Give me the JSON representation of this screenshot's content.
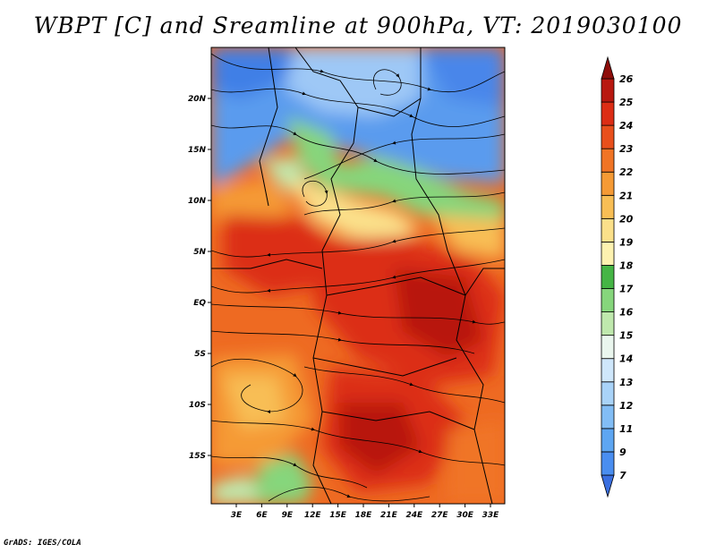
{
  "title": "WBPT [C] and Sreamline at 900hPa, VT: 2019030100",
  "credit": "GrADS: IGES/COLA",
  "map": {
    "lat_ticks": [
      "20N",
      "15N",
      "10N",
      "5N",
      "EQ",
      "5S",
      "10S",
      "15S"
    ],
    "lon_ticks": [
      "3E",
      "6E",
      "9E",
      "12E",
      "15E",
      "18E",
      "21E",
      "24E",
      "27E",
      "30E",
      "33E"
    ],
    "lat_range": [
      -20,
      24
    ],
    "lon_range": [
      0,
      35
    ]
  },
  "colorbar": {
    "levels": [
      "7",
      "9",
      "11",
      "12",
      "13",
      "14",
      "15",
      "16",
      "17",
      "18",
      "19",
      "20",
      "21",
      "22",
      "23",
      "24",
      "25",
      "26"
    ],
    "colors": [
      "#3a6fe0",
      "#4a8ef0",
      "#5ea6f2",
      "#82bdf5",
      "#a9d3f8",
      "#cfe7fb",
      "#eaf6ee",
      "#bfe8ad",
      "#86d67c",
      "#45b545",
      "#fdf2b0",
      "#fbe08a",
      "#f8be55",
      "#f59a35",
      "#f07425",
      "#e84f1c",
      "#dc2d15",
      "#b81810",
      "#8e0d0a"
    ]
  }
}
